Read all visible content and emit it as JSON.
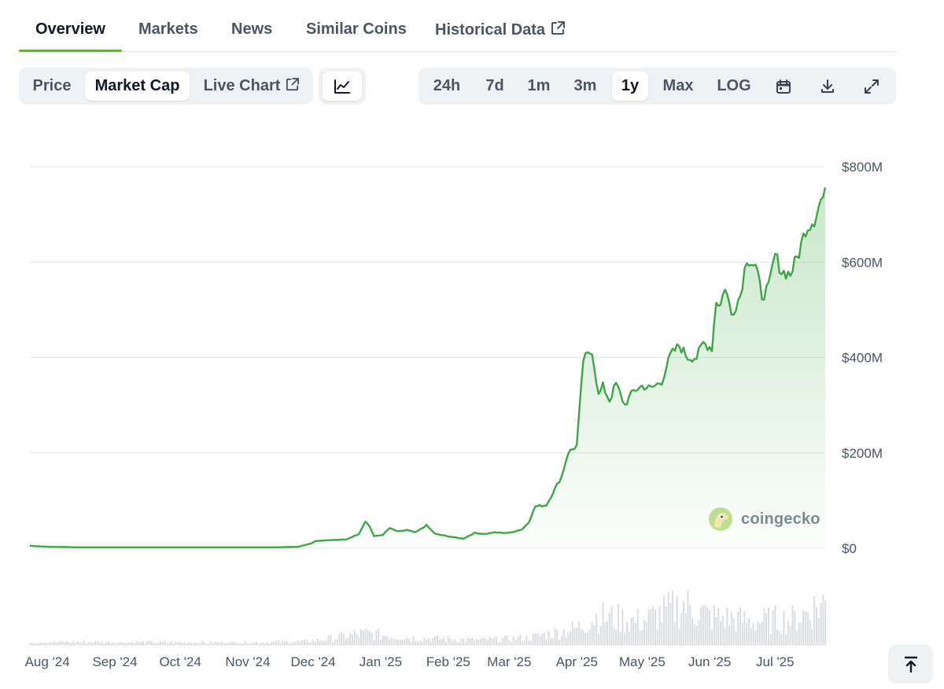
{
  "tabs": [
    {
      "label": "Overview",
      "active": true
    },
    {
      "label": "Markets"
    },
    {
      "label": "News"
    },
    {
      "label": "Similar Coins"
    },
    {
      "label": "Historical Data",
      "icon": "external-link-icon"
    }
  ],
  "metric_toggle": [
    {
      "label": "Price"
    },
    {
      "label": "Market Cap",
      "active": true
    },
    {
      "label": "Live Chart",
      "icon": "external-link-icon"
    }
  ],
  "chart_style_icon": "line-chart-icon",
  "range_toggle": [
    {
      "label": "24h"
    },
    {
      "label": "7d"
    },
    {
      "label": "1m"
    },
    {
      "label": "3m"
    },
    {
      "label": "1y",
      "active": true
    },
    {
      "label": "Max"
    },
    {
      "label": "LOG"
    }
  ],
  "toolbar_icons": [
    "calendar-icon",
    "download-icon",
    "expand-icon"
  ],
  "watermark": {
    "text": "coingecko",
    "icon": "coingecko-logo-icon"
  },
  "scroll_top_icon": "arrow-up-to-line-icon",
  "colors": {
    "line": "#3fa648",
    "accent": "#4bcc00",
    "grid": "#e5e7eb",
    "volume": "#d9dde2"
  },
  "chart_data": {
    "type": "area",
    "title": "",
    "xlabel": "",
    "ylabel": "",
    "y_unit": "USD",
    "ylim": [
      0,
      800000000
    ],
    "y_ticks": [
      {
        "value": 0,
        "label": "$0"
      },
      {
        "value": 200000000,
        "label": "$200M"
      },
      {
        "value": 400000000,
        "label": "$400M"
      },
      {
        "value": 600000000,
        "label": "$600M"
      },
      {
        "value": 800000000,
        "label": "$800M"
      }
    ],
    "xlim": [
      "2024-07-24",
      "2025-07-24"
    ],
    "x_ticks": [
      {
        "date": "2024-08-01",
        "label": "Aug '24"
      },
      {
        "date": "2024-09-01",
        "label": "Sep '24"
      },
      {
        "date": "2024-10-01",
        "label": "Oct '24"
      },
      {
        "date": "2024-11-01",
        "label": "Nov '24"
      },
      {
        "date": "2024-12-01",
        "label": "Dec '24"
      },
      {
        "date": "2025-01-01",
        "label": "Jan '25"
      },
      {
        "date": "2025-02-01",
        "label": "Feb '25"
      },
      {
        "date": "2025-03-01",
        "label": "Mar '25"
      },
      {
        "date": "2025-04-01",
        "label": "Apr '25"
      },
      {
        "date": "2025-05-01",
        "label": "May '25"
      },
      {
        "date": "2025-06-01",
        "label": "Jun '25"
      },
      {
        "date": "2025-07-01",
        "label": "Jul '25"
      }
    ],
    "grid": true,
    "series": [
      {
        "values": [
          [
            "2024-07-24",
            5000000
          ],
          [
            "2024-08-01",
            3000000
          ],
          [
            "2024-08-15",
            2000000
          ],
          [
            "2024-09-01",
            2000000
          ],
          [
            "2024-09-15",
            2000000
          ],
          [
            "2024-10-01",
            2000000
          ],
          [
            "2024-10-15",
            2000000
          ],
          [
            "2024-11-01",
            2000000
          ],
          [
            "2024-11-15",
            2000000
          ],
          [
            "2024-11-24",
            3000000
          ],
          [
            "2024-11-30",
            10000000
          ],
          [
            "2024-12-02",
            15000000
          ],
          [
            "2024-12-08",
            17000000
          ],
          [
            "2024-12-16",
            18000000
          ],
          [
            "2024-12-22",
            30000000
          ],
          [
            "2024-12-25",
            57000000
          ],
          [
            "2024-12-27",
            45000000
          ],
          [
            "2024-12-29",
            25000000
          ],
          [
            "2025-01-02",
            28000000
          ],
          [
            "2025-01-05",
            42000000
          ],
          [
            "2025-01-09",
            35000000
          ],
          [
            "2025-01-13",
            38000000
          ],
          [
            "2025-01-17",
            33000000
          ],
          [
            "2025-01-22",
            48000000
          ],
          [
            "2025-01-26",
            30000000
          ],
          [
            "2025-02-01",
            25000000
          ],
          [
            "2025-02-05",
            22000000
          ],
          [
            "2025-02-08",
            20000000
          ],
          [
            "2025-02-13",
            32000000
          ],
          [
            "2025-02-18",
            30000000
          ],
          [
            "2025-02-22",
            33000000
          ],
          [
            "2025-03-01",
            32000000
          ],
          [
            "2025-03-07",
            40000000
          ],
          [
            "2025-03-10",
            55000000
          ],
          [
            "2025-03-13",
            88000000
          ],
          [
            "2025-03-18",
            90000000
          ],
          [
            "2025-03-22",
            125000000
          ],
          [
            "2025-03-25",
            150000000
          ],
          [
            "2025-03-28",
            200000000
          ],
          [
            "2025-04-01",
            215000000
          ],
          [
            "2025-04-04",
            395000000
          ],
          [
            "2025-04-08",
            415000000
          ],
          [
            "2025-04-11",
            320000000
          ],
          [
            "2025-04-13",
            340000000
          ],
          [
            "2025-04-16",
            310000000
          ],
          [
            "2025-04-19",
            345000000
          ],
          [
            "2025-04-23",
            300000000
          ],
          [
            "2025-04-27",
            330000000
          ],
          [
            "2025-05-01",
            340000000
          ],
          [
            "2025-05-05",
            335000000
          ],
          [
            "2025-05-10",
            350000000
          ],
          [
            "2025-05-14",
            405000000
          ],
          [
            "2025-05-18",
            425000000
          ],
          [
            "2025-05-22",
            400000000
          ],
          [
            "2025-05-26",
            400000000
          ],
          [
            "2025-05-29",
            430000000
          ],
          [
            "2025-06-02",
            420000000
          ],
          [
            "2025-06-04",
            520000000
          ],
          [
            "2025-06-06",
            510000000
          ],
          [
            "2025-06-08",
            550000000
          ],
          [
            "2025-06-11",
            490000000
          ],
          [
            "2025-06-15",
            530000000
          ],
          [
            "2025-06-18",
            610000000
          ],
          [
            "2025-06-22",
            590000000
          ],
          [
            "2025-06-25",
            530000000
          ],
          [
            "2025-06-28",
            545000000
          ],
          [
            "2025-07-01",
            615000000
          ],
          [
            "2025-07-04",
            580000000
          ],
          [
            "2025-07-08",
            575000000
          ],
          [
            "2025-07-12",
            620000000
          ],
          [
            "2025-07-15",
            670000000
          ],
          [
            "2025-07-19",
            690000000
          ],
          [
            "2025-07-22",
            730000000
          ],
          [
            "2025-07-24",
            740000000
          ]
        ]
      }
    ],
    "volume_relative": [
      [
        "2024-07-24",
        0.06
      ],
      [
        "2024-09-01",
        0.06
      ],
      [
        "2024-11-01",
        0.05
      ],
      [
        "2024-12-01",
        0.08
      ],
      [
        "2024-12-25",
        0.25
      ],
      [
        "2025-01-15",
        0.15
      ],
      [
        "2025-02-15",
        0.1
      ],
      [
        "2025-03-10",
        0.15
      ],
      [
        "2025-04-01",
        0.35
      ],
      [
        "2025-04-10",
        0.6
      ],
      [
        "2025-05-01",
        0.5
      ],
      [
        "2025-05-20",
        0.85
      ],
      [
        "2025-06-01",
        0.6
      ],
      [
        "2025-06-20",
        0.5
      ],
      [
        "2025-07-10",
        0.55
      ],
      [
        "2025-07-24",
        0.9
      ]
    ]
  }
}
